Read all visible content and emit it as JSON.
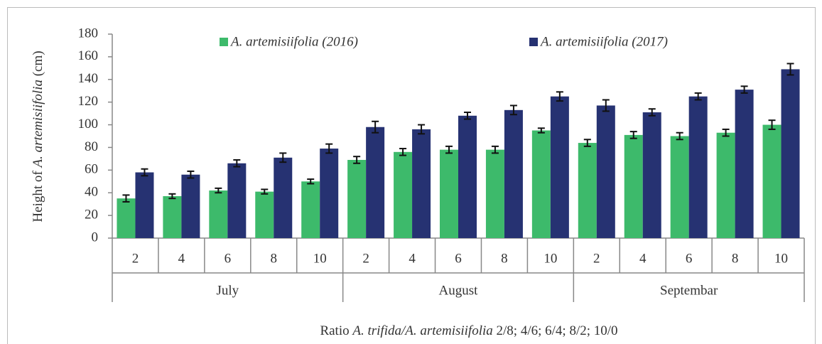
{
  "chart_data": {
    "type": "bar",
    "y_label": [
      {
        "text": "Height of ",
        "italic": false
      },
      {
        "text": "A. artemisiifolia",
        "italic": true
      },
      {
        "text": " (cm)",
        "italic": false
      }
    ],
    "x_label": [
      {
        "text": "Ratio ",
        "italic": false
      },
      {
        "text": "A. trifida/A. artemisiifolia",
        "italic": true
      },
      {
        "text": " 2/8; 4/6; 6/4; 8/2; 10/0",
        "italic": false
      }
    ],
    "groups": [
      {
        "name": "July",
        "categories": [
          "2",
          "4",
          "6",
          "8",
          "10"
        ]
      },
      {
        "name": "August",
        "categories": [
          "2",
          "4",
          "6",
          "8",
          "10"
        ]
      },
      {
        "name": "Septembar",
        "categories": [
          "2",
          "4",
          "6",
          "8",
          "10"
        ]
      }
    ],
    "series": [
      {
        "name": "A. artemisiifolia (2016)",
        "color": "#3dba6b",
        "values": [
          35,
          37,
          42,
          41,
          50,
          69,
          76,
          78,
          78,
          95,
          84,
          91,
          90,
          93,
          100
        ],
        "errors": [
          3,
          2,
          2,
          2,
          2,
          3,
          3,
          3,
          3,
          2,
          3,
          3,
          3,
          3,
          4
        ]
      },
      {
        "name": "A. artemisiifolia (2017)",
        "color": "#263272",
        "values": [
          58,
          56,
          66,
          71,
          79,
          98,
          96,
          108,
          113,
          125,
          117,
          111,
          125,
          131,
          149
        ],
        "errors": [
          3,
          3,
          3,
          4,
          4,
          5,
          4,
          3,
          4,
          4,
          5,
          3,
          3,
          3,
          5
        ]
      }
    ],
    "ylim": [
      0,
      180
    ],
    "yticks": [
      0,
      20,
      40,
      60,
      80,
      100,
      120,
      140,
      160,
      180
    ],
    "grid": false,
    "legend": "top"
  }
}
